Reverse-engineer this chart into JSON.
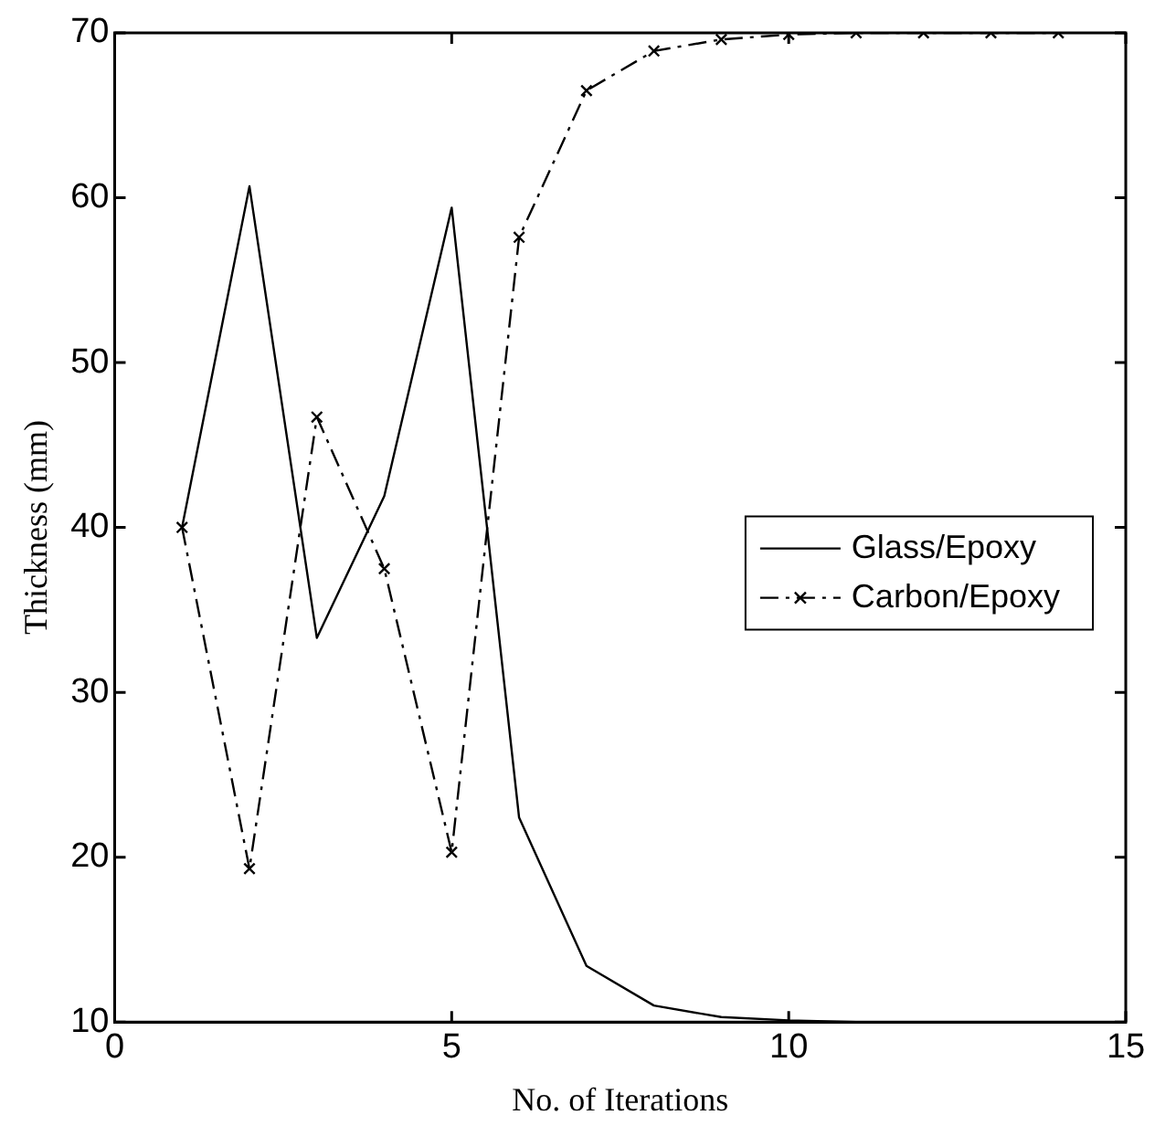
{
  "chart_data": {
    "type": "line",
    "xlabel": "No. of Iterations",
    "ylabel": "Thickness (mm)",
    "x": [
      1,
      2,
      3,
      4,
      5,
      6,
      7,
      8,
      9,
      10,
      11,
      12,
      13,
      14
    ],
    "series": [
      {
        "name": "Glass/Epoxy",
        "color": "#000000",
        "marker": "none",
        "line_style": "solid",
        "values": [
          40,
          60.7,
          33.3,
          41.9,
          59.4,
          22.4,
          13.4,
          11,
          10.3,
          10.1,
          10,
          10,
          10,
          10
        ]
      },
      {
        "name": "Carbon/Epoxy",
        "color": "#000000",
        "marker": "cross",
        "line_style": "dashed",
        "values": [
          40,
          19.3,
          46.7,
          37.5,
          20.3,
          57.6,
          66.5,
          68.9,
          69.6,
          69.9,
          70,
          70,
          70,
          70
        ]
      }
    ],
    "xlim": [
      0,
      15
    ],
    "xticks": [
      0,
      5,
      10,
      15
    ],
    "ylim": [
      10,
      70
    ],
    "yticks": [
      10,
      20,
      30,
      40,
      50,
      60,
      70
    ],
    "grid": false,
    "legend": "right"
  }
}
